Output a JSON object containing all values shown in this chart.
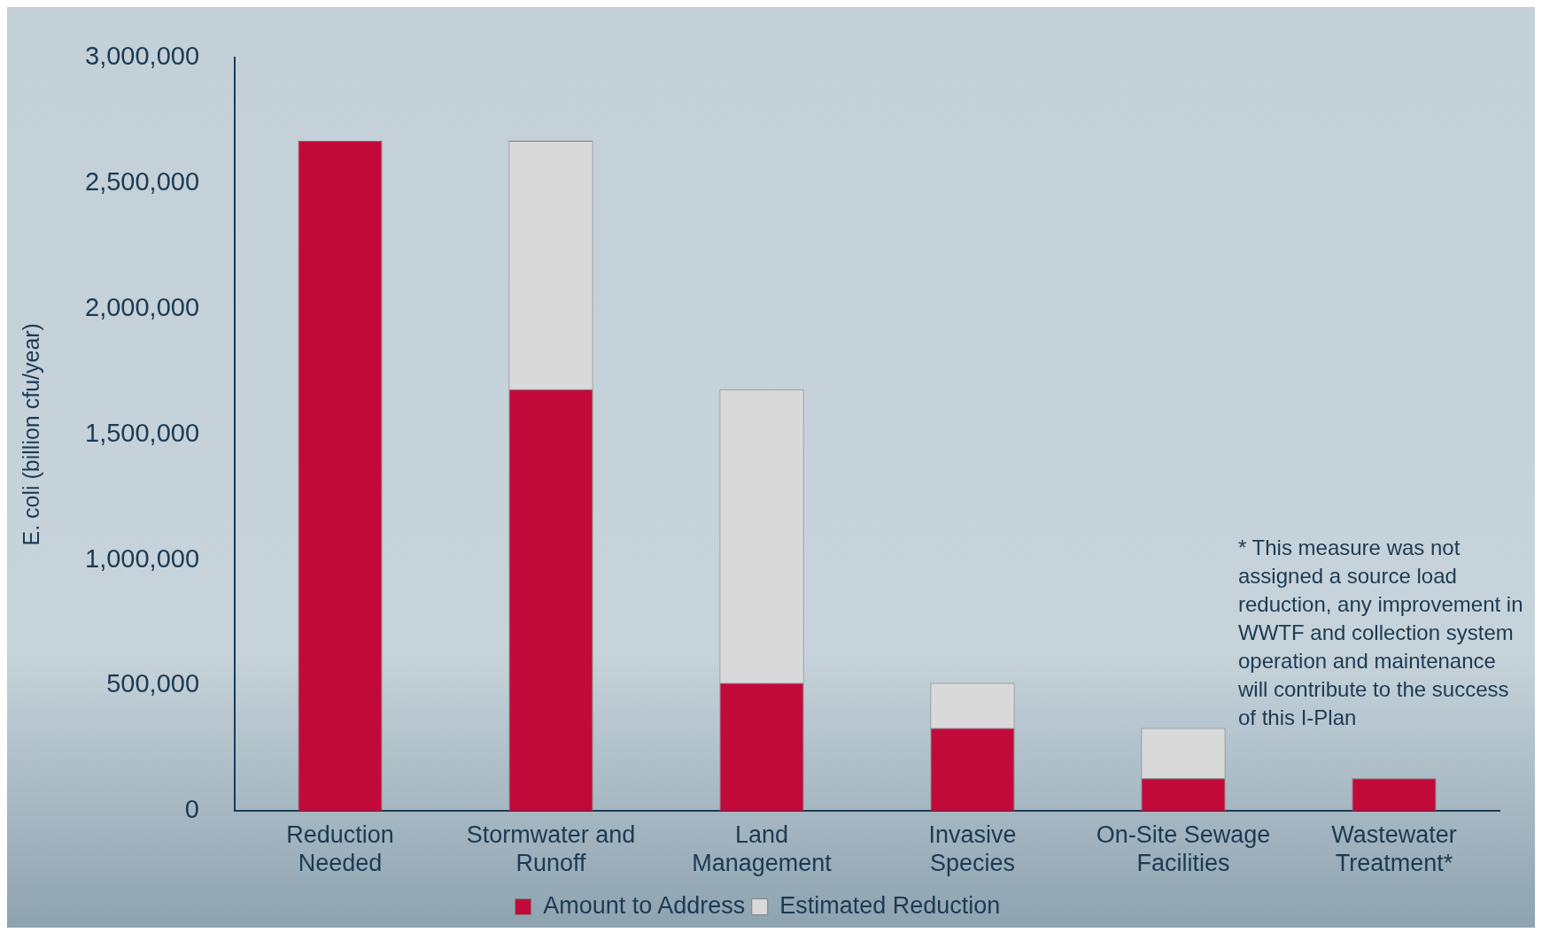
{
  "chart_data": {
    "type": "bar",
    "stacked": true,
    "ylabel": "E. coli (billion cfu/year)",
    "categories": [
      "Reduction Needed",
      "Stormwater and Runoff",
      "Land Management",
      "Invasive Species",
      "On-Site Sewage Facilities",
      "Wastewater Treatment*"
    ],
    "series": [
      {
        "name": "Amount to Address",
        "color": "#c20a3a",
        "values": [
          2670000,
          1680000,
          510000,
          330000,
          130000,
          130000
        ]
      },
      {
        "name": "Estimated Reduction",
        "color": "#d9d9d9",
        "values": [
          null,
          990000,
          1170000,
          180000,
          200000,
          null
        ]
      }
    ],
    "ylim": [
      0,
      3000000
    ],
    "yticks": [
      0,
      {
        "value": 500000,
        "label": "500,000"
      },
      {
        "value": 1000000,
        "label": "1,000,000"
      },
      {
        "value": 1500000,
        "label": "1,500,000"
      },
      {
        "value": 2000000,
        "label": "2,000,000"
      },
      {
        "value": 2500000,
        "label": "2,500,000"
      },
      {
        "value": 3000000,
        "label": "3,000,000"
      }
    ],
    "grid": false,
    "legend": "bottom",
    "annotations": [
      "* This measure was not assigned a source load reduction, any improvement in WWTF and collection system operation and maintenance will contribute to the success of this I-Plan"
    ]
  }
}
